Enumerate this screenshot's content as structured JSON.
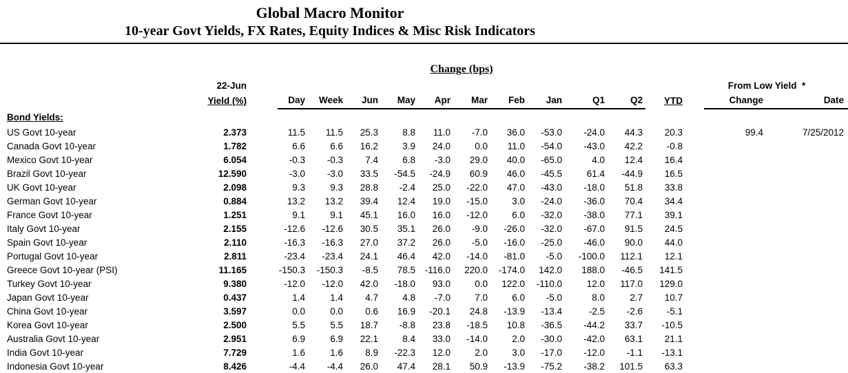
{
  "page": {
    "title": "Global Macro Monitor",
    "subtitle": "10-year Govt Yields, FX Rates, Equity Indices & Misc Risk Indicators"
  },
  "table": {
    "change_header": "Change (bps)",
    "asof_label": "22-Jun",
    "yield_label": "Yield (%)",
    "change_columns": [
      "Day",
      "Week",
      "Jun",
      "May",
      "Apr",
      "Mar",
      "Feb",
      "Jan",
      "Q1",
      "Q2"
    ],
    "ytd_label": "YTD",
    "from_low_header": "From Low Yield  *",
    "from_low_columns": [
      "Change",
      "Date"
    ],
    "section_label": "Bond Yields:",
    "rows": [
      {
        "name": "US Govt 10-year",
        "yield": "2.373",
        "changes": [
          "11.5",
          "11.5",
          "25.3",
          "8.8",
          "11.0",
          "-7.0",
          "36.0",
          "-53.0",
          "-24.0",
          "44.3"
        ],
        "ytd": "20.3",
        "from_low_change": "99.4",
        "from_low_date": "7/25/2012"
      },
      {
        "name": "Canada Govt 10-year",
        "yield": "1.782",
        "changes": [
          "6.6",
          "6.6",
          "16.2",
          "3.9",
          "24.0",
          "0.0",
          "11.0",
          "-54.0",
          "-43.0",
          "42.2"
        ],
        "ytd": "-0.8",
        "from_low_change": "",
        "from_low_date": ""
      },
      {
        "name": "Mexico Govt 10-year",
        "yield": "6.054",
        "changes": [
          "-0.3",
          "-0.3",
          "7.4",
          "6.8",
          "-3.0",
          "29.0",
          "40.0",
          "-65.0",
          "4.0",
          "12.4"
        ],
        "ytd": "16.4",
        "from_low_change": "",
        "from_low_date": ""
      },
      {
        "name": "Brazil Govt 10-year",
        "yield": "12.590",
        "changes": [
          "-3.0",
          "-3.0",
          "33.5",
          "-54.5",
          "-24.9",
          "60.9",
          "46.0",
          "-45.5",
          "61.4",
          "-44.9"
        ],
        "ytd": "16.5",
        "from_low_change": "",
        "from_low_date": ""
      },
      {
        "name": "UK Govt 10-year",
        "yield": "2.098",
        "changes": [
          "9.3",
          "9.3",
          "28.8",
          "-2.4",
          "25.0",
          "-22.0",
          "47.0",
          "-43.0",
          "-18.0",
          "51.8"
        ],
        "ytd": "33.8",
        "from_low_change": "",
        "from_low_date": ""
      },
      {
        "name": "German Govt 10-year",
        "yield": "0.884",
        "changes": [
          "13.2",
          "13.2",
          "39.4",
          "12.4",
          "19.0",
          "-15.0",
          "3.0",
          "-24.0",
          "-36.0",
          "70.4"
        ],
        "ytd": "34.4",
        "from_low_change": "",
        "from_low_date": ""
      },
      {
        "name": "France Govt 10-year",
        "yield": "1.251",
        "changes": [
          "9.1",
          "9.1",
          "45.1",
          "16.0",
          "16.0",
          "-12.0",
          "6.0",
          "-32.0",
          "-38.0",
          "77.1"
        ],
        "ytd": "39.1",
        "from_low_change": "",
        "from_low_date": ""
      },
      {
        "name": "Italy Govt 10-year",
        "yield": "2.155",
        "changes": [
          "-12.6",
          "-12.6",
          "30.5",
          "35.1",
          "26.0",
          "-9.0",
          "-26.0",
          "-32.0",
          "-67.0",
          "91.5"
        ],
        "ytd": "24.5",
        "from_low_change": "",
        "from_low_date": ""
      },
      {
        "name": "Spain Govt 10-year",
        "yield": "2.110",
        "changes": [
          "-16.3",
          "-16.3",
          "27.0",
          "37.2",
          "26.0",
          "-5.0",
          "-16.0",
          "-25.0",
          "-46.0",
          "90.0"
        ],
        "ytd": "44.0",
        "from_low_change": "",
        "from_low_date": ""
      },
      {
        "name": "Portugal Govt 10-year",
        "yield": "2.811",
        "changes": [
          "-23.4",
          "-23.4",
          "24.1",
          "46.4",
          "42.0",
          "-14.0",
          "-81.0",
          "-5.0",
          "-100.0",
          "112.1"
        ],
        "ytd": "12.1",
        "from_low_change": "",
        "from_low_date": ""
      },
      {
        "name": "Greece Govt 10-year (PSI)",
        "yield": "11.165",
        "changes": [
          "-150.3",
          "-150.3",
          "-8.5",
          "78.5",
          "-116.0",
          "220.0",
          "-174.0",
          "142.0",
          "188.0",
          "-46.5"
        ],
        "ytd": "141.5",
        "from_low_change": "",
        "from_low_date": ""
      },
      {
        "name": "Turkey Govt 10-year",
        "yield": "9.380",
        "changes": [
          "-12.0",
          "-12.0",
          "42.0",
          "-18.0",
          "93.0",
          "0.0",
          "122.0",
          "-110.0",
          "12.0",
          "117.0"
        ],
        "ytd": "129.0",
        "from_low_change": "",
        "from_low_date": ""
      },
      {
        "name": "Japan Govt 10-year",
        "yield": "0.437",
        "changes": [
          "1.4",
          "1.4",
          "4.7",
          "4.8",
          "-7.0",
          "7.0",
          "6.0",
          "-5.0",
          "8.0",
          "2.7"
        ],
        "ytd": "10.7",
        "from_low_change": "",
        "from_low_date": ""
      },
      {
        "name": "China Govt 10-year",
        "yield": "3.597",
        "changes": [
          "0.0",
          "0.0",
          "0.6",
          "16.9",
          "-20.1",
          "24.8",
          "-13.9",
          "-13.4",
          "-2.5",
          "-2.6"
        ],
        "ytd": "-5.1",
        "from_low_change": "",
        "from_low_date": ""
      },
      {
        "name": "Korea Govt 10-year",
        "yield": "2.500",
        "changes": [
          "5.5",
          "5.5",
          "18.7",
          "-8.8",
          "23.8",
          "-18.5",
          "10.8",
          "-36.5",
          "-44.2",
          "33.7"
        ],
        "ytd": "-10.5",
        "from_low_change": "",
        "from_low_date": ""
      },
      {
        "name": "Australia Govt 10-year",
        "yield": "2.951",
        "changes": [
          "6.9",
          "6.9",
          "22.1",
          "8.4",
          "33.0",
          "-14.0",
          "2.0",
          "-30.0",
          "-42.0",
          "63.1"
        ],
        "ytd": "21.1",
        "from_low_change": "",
        "from_low_date": ""
      },
      {
        "name": "India Govt 10-year",
        "yield": "7.729",
        "changes": [
          "1.6",
          "1.6",
          "8.9",
          "-22.3",
          "12.0",
          "2.0",
          "3.0",
          "-17.0",
          "-12.0",
          "-1.1"
        ],
        "ytd": "-13.1",
        "from_low_change": "",
        "from_low_date": ""
      },
      {
        "name": "Indonesia Govt 10-year",
        "yield": "8.426",
        "changes": [
          "-4.4",
          "-4.4",
          "26.0",
          "47.4",
          "28.1",
          "50.9",
          "-13.9",
          "-75.2",
          "-38.2",
          "101.5"
        ],
        "ytd": "63.3",
        "from_low_change": "",
        "from_low_date": ""
      }
    ]
  }
}
